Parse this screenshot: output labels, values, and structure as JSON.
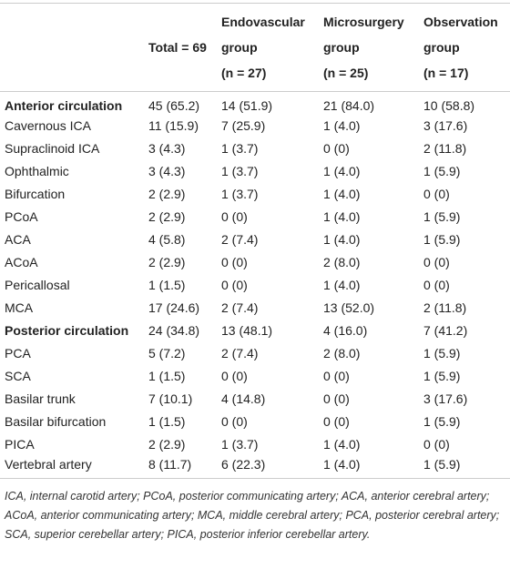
{
  "table": {
    "header": [
      [
        "Total = 69"
      ],
      [
        "Endovascular",
        "group",
        "(n = 27)"
      ],
      [
        "Microsurgery",
        "group",
        "(n = 25)"
      ],
      [
        "Observation",
        "group",
        "(n = 17)"
      ]
    ],
    "bold_rows": [
      0,
      10
    ],
    "rows": [
      [
        "Anterior circulation",
        "45 (65.2)",
        "14 (51.9)",
        "21 (84.0)",
        "10 (58.8)"
      ],
      [
        "Cavernous ICA",
        "11 (15.9)",
        "7 (25.9)",
        "1 (4.0)",
        "3 (17.6)"
      ],
      [
        "Supraclinoid ICA",
        "3 (4.3)",
        "1 (3.7)",
        "0 (0)",
        "2 (11.8)"
      ],
      [
        "Ophthalmic",
        "3 (4.3)",
        "1 (3.7)",
        "1 (4.0)",
        "1 (5.9)"
      ],
      [
        "Bifurcation",
        "2 (2.9)",
        "1 (3.7)",
        "1 (4.0)",
        "0 (0)"
      ],
      [
        "PCoA",
        "2 (2.9)",
        "0 (0)",
        "1 (4.0)",
        "1 (5.9)"
      ],
      [
        "ACA",
        "4 (5.8)",
        "2 (7.4)",
        "1 (4.0)",
        "1 (5.9)"
      ],
      [
        "ACoA",
        "2 (2.9)",
        "0 (0)",
        "2 (8.0)",
        "0 (0)"
      ],
      [
        "Pericallosal",
        "1 (1.5)",
        "0 (0)",
        "1 (4.0)",
        "0 (0)"
      ],
      [
        "MCA",
        "17 (24.6)",
        "2 (7.4)",
        "13 (52.0)",
        "2 (11.8)"
      ],
      [
        "Posterior circulation",
        "24 (34.8)",
        "13 (48.1)",
        "4 (16.0)",
        "7 (41.2)"
      ],
      [
        "PCA",
        "5 (7.2)",
        "2 (7.4)",
        "2 (8.0)",
        "1 (5.9)"
      ],
      [
        "SCA",
        "1 (1.5)",
        "0 (0)",
        "0 (0)",
        "1 (5.9)"
      ],
      [
        "Basilar trunk",
        "7 (10.1)",
        "4 (14.8)",
        "0 (0)",
        "3 (17.6)"
      ],
      [
        "Basilar bifurcation",
        "1 (1.5)",
        "0 (0)",
        "0 (0)",
        "1 (5.9)"
      ],
      [
        "PICA",
        "2 (2.9)",
        "1 (3.7)",
        "1 (4.0)",
        "0 (0)"
      ],
      [
        "Vertebral artery",
        "8 (11.7)",
        "6 (22.3)",
        "1 (4.0)",
        "1 (5.9)"
      ]
    ],
    "footnote": "ICA, internal carotid artery; PCoA, posterior communicating artery; ACA, anterior cerebral artery; ACoA, anterior communicating artery; MCA, middle cerebral artery; PCA, posterior cerebral artery; SCA, superior cerebellar artery; PICA, posterior inferior cerebellar artery."
  }
}
